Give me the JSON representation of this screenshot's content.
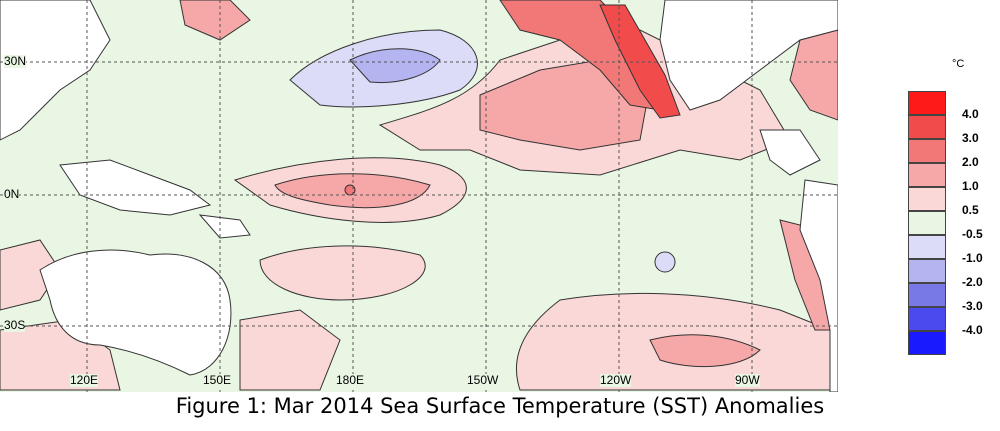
{
  "figure_caption": "Figure 1: Mar 2014 Sea Surface Temperature (SST) Anomalies",
  "map": {
    "latitude_labels": [
      "30N",
      "0N",
      "30S"
    ],
    "longitude_labels": [
      "120E",
      "150E",
      "180E",
      "150W",
      "120W",
      "90W"
    ],
    "colors": {
      "land": "#ffffff",
      "near_zero": "#e9f6e4",
      "coast": "#333333",
      "grid": "#555555"
    }
  },
  "legend": {
    "unit": "°C",
    "levels": [
      {
        "label": "4.0",
        "color": "#ff1a1a"
      },
      {
        "label": "3.0",
        "color": "#f24b4b"
      },
      {
        "label": "2.0",
        "color": "#f27878"
      },
      {
        "label": "1.0",
        "color": "#f6a8a8"
      },
      {
        "label": "0.5",
        "color": "#fbd8d8"
      },
      {
        "label": "-0.5",
        "color": "#e9f6e4"
      },
      {
        "label": "-1.0",
        "color": "#dcdcf8"
      },
      {
        "label": "-2.0",
        "color": "#b4b4f0"
      },
      {
        "label": "-3.0",
        "color": "#7878e6"
      },
      {
        "label": "-4.0",
        "color": "#4a4aee"
      },
      {
        "label": "",
        "color": "#1a1aff"
      }
    ]
  }
}
